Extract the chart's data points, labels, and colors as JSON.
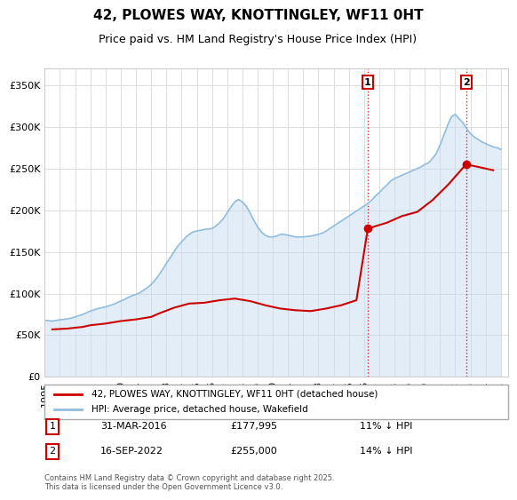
{
  "title": "42, PLOWES WAY, KNOTTINGLEY, WF11 0HT",
  "subtitle": "Price paid vs. HM Land Registry's House Price Index (HPI)",
  "ylabel_ticks": [
    "£0",
    "£50K",
    "£100K",
    "£150K",
    "£200K",
    "£250K",
    "£300K",
    "£350K"
  ],
  "ylim": [
    0,
    370000
  ],
  "xlim_start": 1995.0,
  "xlim_end": 2025.5,
  "legend_line1": "42, PLOWES WAY, KNOTTINGLEY, WF11 0HT (detached house)",
  "legend_line2": "HPI: Average price, detached house, Wakefield",
  "sale1_label": "1",
  "sale1_date": "31-MAR-2016",
  "sale1_price": "£177,995",
  "sale1_hpi": "11% ↓ HPI",
  "sale1_x": 2016.25,
  "sale1_y": 177995,
  "sale2_label": "2",
  "sale2_date": "16-SEP-2022",
  "sale2_price": "£255,000",
  "sale2_hpi": "14% ↓ HPI",
  "sale2_x": 2022.71,
  "sale2_y": 255000,
  "hpi_color": "#add8e6",
  "hpi_color_dark": "#6baed6",
  "price_color": "#cc0000",
  "marker_color": "#cc0000",
  "dotted_color": "#cc0000",
  "background_color": "#ffffff",
  "grid_color": "#dddddd",
  "footer": "Contains HM Land Registry data © Crown copyright and database right 2025.\nThis data is licensed under the Open Government Licence v3.0.",
  "hpi_years": [
    1995,
    1995.25,
    1995.5,
    1995.75,
    1996,
    1996.25,
    1996.5,
    1996.75,
    1997,
    1997.25,
    1997.5,
    1997.75,
    1998,
    1998.25,
    1998.5,
    1998.75,
    1999,
    1999.25,
    1999.5,
    1999.75,
    2000,
    2000.25,
    2000.5,
    2000.75,
    2001,
    2001.25,
    2001.5,
    2001.75,
    2002,
    2002.25,
    2002.5,
    2002.75,
    2003,
    2003.25,
    2003.5,
    2003.75,
    2004,
    2004.25,
    2004.5,
    2004.75,
    2005,
    2005.25,
    2005.5,
    2005.75,
    2006,
    2006.25,
    2006.5,
    2006.75,
    2007,
    2007.25,
    2007.5,
    2007.75,
    2008,
    2008.25,
    2008.5,
    2008.75,
    2009,
    2009.25,
    2009.5,
    2009.75,
    2010,
    2010.25,
    2010.5,
    2010.75,
    2011,
    2011.25,
    2011.5,
    2011.75,
    2012,
    2012.25,
    2012.5,
    2012.75,
    2013,
    2013.25,
    2013.5,
    2013.75,
    2014,
    2014.25,
    2014.5,
    2014.75,
    2015,
    2015.25,
    2015.5,
    2015.75,
    2016,
    2016.25,
    2016.5,
    2016.75,
    2017,
    2017.25,
    2017.5,
    2017.75,
    2018,
    2018.25,
    2018.5,
    2018.75,
    2019,
    2019.25,
    2019.5,
    2019.75,
    2020,
    2020.25,
    2020.5,
    2020.75,
    2021,
    2021.25,
    2021.5,
    2021.75,
    2022,
    2022.25,
    2022.5,
    2022.75,
    2023,
    2023.25,
    2023.5,
    2023.75,
    2024,
    2024.25,
    2024.5,
    2024.75,
    2025
  ],
  "hpi_values": [
    68000,
    67500,
    67000,
    67800,
    68500,
    69000,
    69800,
    70500,
    72000,
    73500,
    75000,
    77000,
    79000,
    80500,
    82000,
    83000,
    84000,
    85500,
    87000,
    89000,
    91000,
    93000,
    95500,
    97500,
    99000,
    101000,
    104000,
    107000,
    111000,
    116000,
    122000,
    129000,
    136000,
    143000,
    150000,
    157000,
    162000,
    167000,
    171000,
    174000,
    175000,
    176000,
    177000,
    177500,
    178000,
    181000,
    185000,
    190000,
    197000,
    204000,
    210000,
    213000,
    210000,
    205000,
    197000,
    188000,
    180000,
    174000,
    170000,
    168000,
    168000,
    169000,
    171000,
    171000,
    170000,
    169000,
    168000,
    168000,
    168000,
    168500,
    169000,
    170000,
    171000,
    172500,
    175000,
    178000,
    181000,
    184000,
    187000,
    190000,
    193000,
    196000,
    199000,
    202000,
    205000,
    208000,
    212000,
    217000,
    221000,
    226000,
    230000,
    235000,
    238000,
    240000,
    242000,
    244000,
    246000,
    248000,
    250000,
    252000,
    255000,
    257000,
    262000,
    268000,
    278000,
    290000,
    302000,
    312000,
    315000,
    310000,
    305000,
    298000,
    292000,
    288000,
    285000,
    282000,
    280000,
    278000,
    276000,
    275000,
    273000
  ],
  "price_years": [
    1995.5,
    1996.5,
    1997.5,
    1998.0,
    1999.0,
    2000.0,
    2001.0,
    2002.0,
    2002.5,
    2003.5,
    2004.5,
    2005.5,
    2006.5,
    2007.5,
    2008.5,
    2009.5,
    2010.5,
    2011.5,
    2012.5,
    2013.5,
    2014.5,
    2015.5,
    2016.25,
    2017.5,
    2018.5,
    2019.5,
    2020.5,
    2021.5,
    2022.71,
    2023.5,
    2024.5
  ],
  "price_values": [
    57000,
    58000,
    60000,
    62000,
    64000,
    67000,
    69000,
    72000,
    76000,
    83000,
    88000,
    89000,
    92000,
    94000,
    91000,
    86000,
    82000,
    80000,
    79000,
    82000,
    86000,
    92000,
    177995,
    185000,
    193000,
    198000,
    212000,
    230000,
    255000,
    252000,
    248000
  ]
}
